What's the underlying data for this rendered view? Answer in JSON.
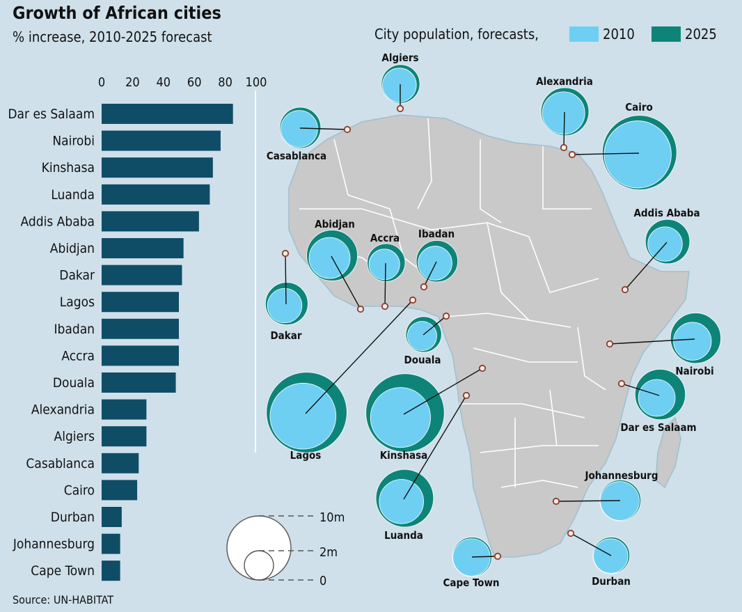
{
  "title": "Growth of African cities",
  "subtitle": "% increase, 2010-2025 forecast",
  "source": "Source: UN-HABITAT",
  "colors": {
    "background": "#cfe0ea",
    "bar": "#0f4d66",
    "pop_2010": "#6fcff3",
    "pop_2025": "#0e8478",
    "land": "#c9c9c9",
    "border": "#ffffff",
    "marker": "#8b3b2c"
  },
  "chart_data": [
    {
      "type": "bar",
      "orientation": "horizontal",
      "title": "Growth of African cities",
      "subtitle": "% increase, 2010-2025 forecast",
      "xlim": [
        0,
        100
      ],
      "xticks": [
        0,
        20,
        40,
        60,
        80,
        100
      ],
      "categories": [
        "Dar es Salaam",
        "Nairobi",
        "Kinshasa",
        "Luanda",
        "Addis Ababa",
        "Abidjan",
        "Dakar",
        "Lagos",
        "Ibadan",
        "Accra",
        "Douala",
        "Alexandria",
        "Algiers",
        "Casablanca",
        "Cairo",
        "Durban",
        "Johannesburg",
        "Cape Town"
      ],
      "values": [
        85,
        77,
        72,
        70,
        63,
        53,
        52,
        50,
        50,
        50,
        48,
        29,
        29,
        24,
        23,
        13,
        12,
        12
      ],
      "grid": false
    },
    {
      "type": "bubble-map",
      "legend_title": "City population, forecasts,",
      "legend": [
        "2010",
        "2025"
      ],
      "series": [
        {
          "name": "2010",
          "unit": "m"
        },
        {
          "name": "2025",
          "unit": "m"
        }
      ],
      "cities": [
        {
          "name": "Algiers",
          "pop_2010": 2.8,
          "pop_2025": 3.6
        },
        {
          "name": "Casablanca",
          "pop_2010": 3.3,
          "pop_2025": 4.1
        },
        {
          "name": "Alexandria",
          "pop_2010": 4.4,
          "pop_2025": 5.6
        },
        {
          "name": "Cairo",
          "pop_2010": 11.0,
          "pop_2025": 13.5
        },
        {
          "name": "Addis Ababa",
          "pop_2010": 2.9,
          "pop_2025": 4.8
        },
        {
          "name": "Abidjan",
          "pop_2010": 4.1,
          "pop_2025": 6.3
        },
        {
          "name": "Accra",
          "pop_2010": 2.3,
          "pop_2025": 3.5
        },
        {
          "name": "Ibadan",
          "pop_2010": 2.8,
          "pop_2025": 4.2
        },
        {
          "name": "Dakar",
          "pop_2010": 2.9,
          "pop_2025": 4.4
        },
        {
          "name": "Douala",
          "pop_2010": 2.1,
          "pop_2025": 3.1
        },
        {
          "name": "Nairobi",
          "pop_2010": 3.5,
          "pop_2025": 6.2
        },
        {
          "name": "Dar es Salaam",
          "pop_2010": 3.3,
          "pop_2025": 6.2
        },
        {
          "name": "Lagos",
          "pop_2010": 10.6,
          "pop_2025": 15.8
        },
        {
          "name": "Kinshasa",
          "pop_2010": 8.8,
          "pop_2025": 15.0
        },
        {
          "name": "Luanda",
          "pop_2010": 4.8,
          "pop_2025": 8.1
        },
        {
          "name": "Johannesburg",
          "pop_2010": 3.7,
          "pop_2025": 4.1
        },
        {
          "name": "Cape Town",
          "pop_2010": 3.4,
          "pop_2025": 3.8
        },
        {
          "name": "Durban",
          "pop_2010": 2.9,
          "pop_2025": 3.3
        }
      ]
    }
  ],
  "scale_legend": {
    "labels": [
      "10m",
      "2m",
      "0"
    ]
  }
}
